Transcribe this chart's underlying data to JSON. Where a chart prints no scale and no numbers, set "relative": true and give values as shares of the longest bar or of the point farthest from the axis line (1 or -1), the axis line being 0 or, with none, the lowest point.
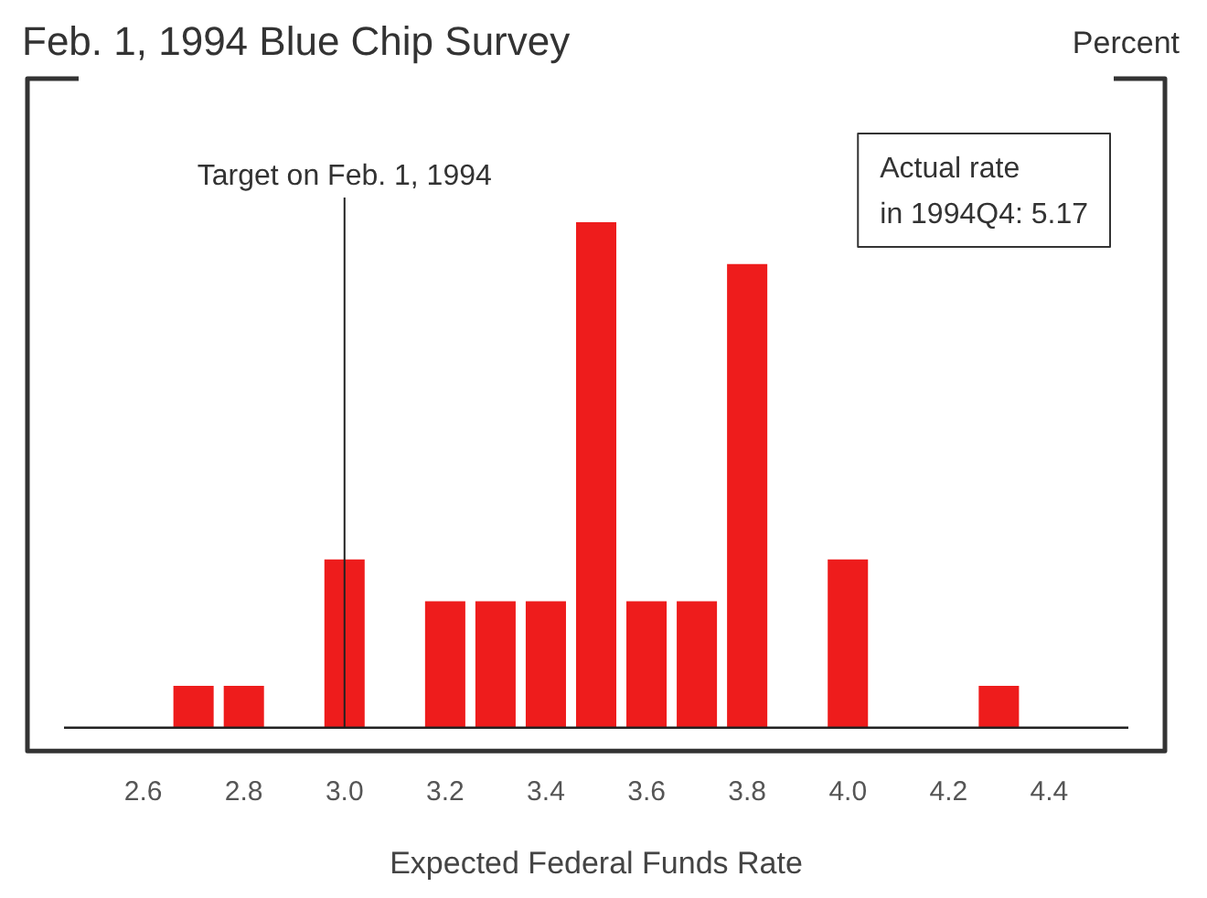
{
  "chart_data": {
    "type": "bar",
    "title": "Feb. 1, 1994 Blue Chip Survey",
    "xlabel": "Expected Federal Funds Rate",
    "relative": true,
    "color": "#ee1c1c",
    "x": [
      2.7,
      2.8,
      3.0,
      3.2,
      3.3,
      3.4,
      3.5,
      3.6,
      3.7,
      3.8,
      4.0,
      4.3
    ],
    "values": [
      0.083,
      0.083,
      0.333,
      0.25,
      0.25,
      0.25,
      1,
      0.25,
      0.25,
      0.917,
      0.333,
      0.083
    ],
    "xlim": [
      2.37,
      4.63
    ],
    "xticks": [
      {
        "value": 2.6,
        "label": "2.6"
      },
      {
        "value": 2.8,
        "label": "2.8"
      },
      {
        "value": 3.0,
        "label": "3.0"
      },
      {
        "value": 3.2,
        "label": "3.2"
      },
      {
        "value": 3.4,
        "label": "3.4"
      },
      {
        "value": 3.6,
        "label": "3.6"
      },
      {
        "value": 3.8,
        "label": "3.8"
      },
      {
        "value": 4.0,
        "label": "4.0"
      },
      {
        "value": 4.2,
        "label": "4.2"
      },
      {
        "value": 4.4,
        "label": "4.4"
      }
    ],
    "ref_lines": [
      {
        "axis": "x",
        "value": 3.0,
        "label": "Target on Feb. 1, 1994",
        "color": "#222222"
      }
    ],
    "annotations": [
      "Percent",
      "Actual rate\nin 1994Q4: 5.17"
    ],
    "grid": false
  }
}
